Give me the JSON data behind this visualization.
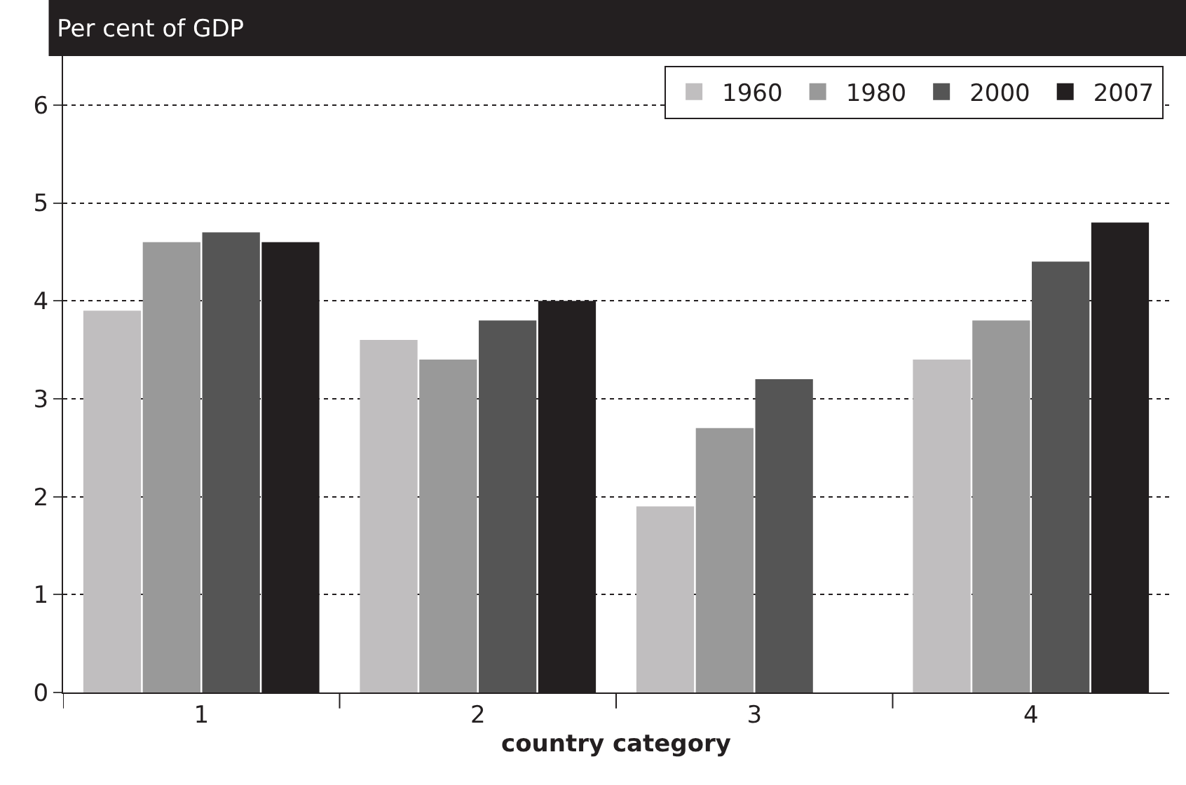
{
  "chart_data": {
    "type": "bar",
    "title": "Per cent of GDP",
    "xlabel": "country category",
    "categories": [
      "1",
      "2",
      "3",
      "4"
    ],
    "series": [
      {
        "name": "1960",
        "color": "#c0bebf",
        "values": [
          3.9,
          3.6,
          1.9,
          3.4
        ]
      },
      {
        "name": "1980",
        "color": "#999999",
        "values": [
          4.6,
          3.4,
          2.7,
          3.8
        ]
      },
      {
        "name": "2000",
        "color": "#555555",
        "values": [
          4.7,
          3.8,
          3.2,
          4.4
        ]
      },
      {
        "name": "2007",
        "color": "#231f20",
        "values": [
          4.6,
          4.0,
          null,
          4.8
        ]
      }
    ],
    "ylim": [
      0,
      6.5
    ],
    "yticks": [
      0,
      1,
      2,
      3,
      4,
      5,
      6
    ],
    "grid": "y",
    "legend": "top right"
  }
}
